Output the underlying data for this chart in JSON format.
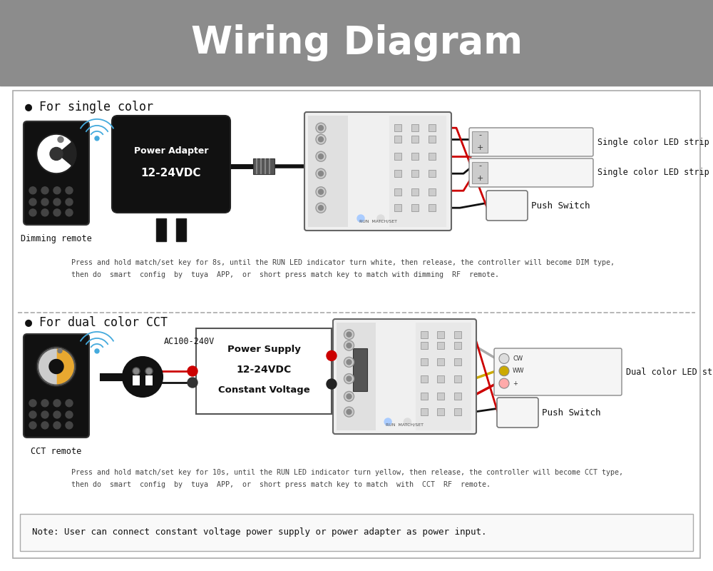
{
  "title": "Wiring Diagram",
  "title_bg_color": "#8c8c8c",
  "title_text_color": "#ffffff",
  "title_fontsize": 38,
  "bg_color": "#ffffff",
  "section1_label": "● For single color",
  "section2_label": "● For dual color CCT",
  "dimming_remote_label": "Dimming remote",
  "cct_remote_label": "CCT remote",
  "power_adapter_line1": "Power Adapter",
  "power_adapter_line2": "12-24VDC",
  "power_supply_line1": "Power Supply",
  "power_supply_line2": "12-24VDC",
  "power_supply_line3": "Constant Voltage",
  "ac_label": "AC100-240V",
  "single_strip1": "Single color LED strip",
  "single_strip2": "Single color LED strip",
  "dual_strip": "Dual color LED strip",
  "push_switch": "Push Switch",
  "note_text": "Note: User can connect constant voltage power supply or power adapter as power input.",
  "instruction1_line1": "Press and hold match/set key for 8s, until the RUN LED indicator turn white, then release, the controller will become DIM type,",
  "instruction1_line2": "then do  smart  config  by  tuya  APP,  or  short press match key to match with dimming  RF  remote.",
  "instruction2_line1": "Press and hold match/set key for 10s, until the RUN LED indicator turn yellow, then release, the controller will become CCT type,",
  "instruction2_line2": "then do  smart  config  by  tuya  APP,  or  short press match key to match  with  CCT  RF  remote.",
  "red_color": "#cc0000",
  "black_color": "#111111",
  "yellow_color": "#ccaa00",
  "white_color": "#ffffff",
  "blue_color": "#44aadd",
  "dark_fill": "#111111",
  "strip_fill": "#f5f5f5",
  "controller_fill": "#f0f0f0",
  "power_supply_fill": "#ffffff"
}
